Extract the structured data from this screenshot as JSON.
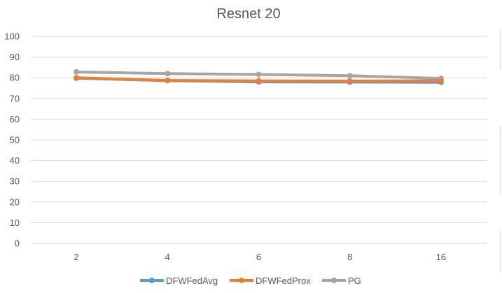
{
  "chart_data": {
    "type": "line",
    "title": "Resnet 20",
    "categories": [
      "2",
      "4",
      "6",
      "8",
      "16"
    ],
    "yticks": [
      "0",
      "10",
      "20",
      "30",
      "40",
      "50",
      "60",
      "70",
      "80",
      "90",
      "100"
    ],
    "ylim": [
      0,
      100
    ],
    "grid": true,
    "legend_position": "bottom",
    "series": [
      {
        "name": "DFWFedAvg",
        "color": "#5b9bd5",
        "values": [
          79.8,
          78.6,
          78.0,
          77.9,
          77.8
        ]
      },
      {
        "name": "DFWFedProx",
        "color": "#ed7d31",
        "values": [
          80.0,
          78.7,
          78.5,
          78.4,
          78.6
        ]
      },
      {
        "name": "PG",
        "color": "#a5a5a5",
        "values": [
          82.8,
          82.0,
          81.6,
          81.0,
          79.7
        ]
      }
    ]
  }
}
